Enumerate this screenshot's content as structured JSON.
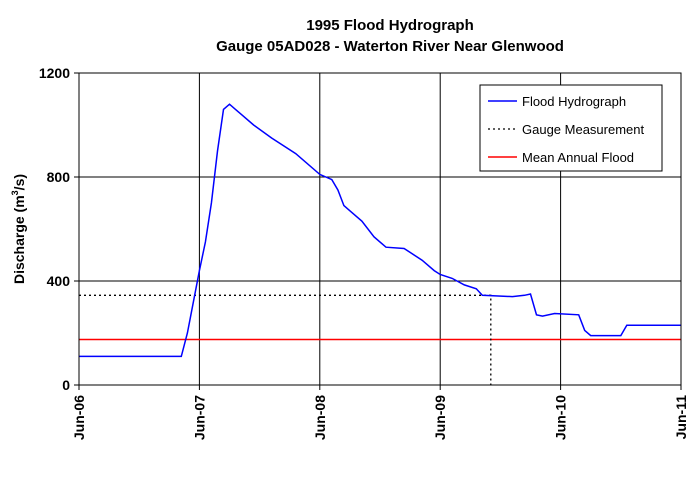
{
  "chart_data": {
    "type": "line",
    "title": "1995 Flood Hydrograph",
    "subtitle": "Gauge 05AD028 - Waterton River Near Glenwood",
    "ylabel": "Discharge (m",
    "ylabel_sup": "3",
    "ylabel_tail": "/s)",
    "xlabel": "",
    "ylim": [
      0,
      1200
    ],
    "yticks": [
      0,
      400,
      800,
      1200
    ],
    "xlim": [
      6,
      11
    ],
    "xticks": [
      6,
      7,
      8,
      9,
      10,
      11
    ],
    "xtick_labels": [
      "Jun-06",
      "Jun-07",
      "Jun-08",
      "Jun-09",
      "Jun-10",
      "Jun-11"
    ],
    "grid": true,
    "legend_position": "top-right",
    "series": [
      {
        "name": "Flood Hydrograph",
        "style": "solid",
        "color": "#0000ff",
        "x": [
          6.0,
          6.85,
          6.9,
          6.95,
          7.0,
          7.05,
          7.1,
          7.15,
          7.2,
          7.25,
          7.3,
          7.35,
          7.45,
          7.6,
          7.8,
          8.0,
          8.1,
          8.15,
          8.2,
          8.25,
          8.35,
          8.45,
          8.55,
          8.7,
          8.75,
          8.85,
          8.95,
          9.0,
          9.1,
          9.2,
          9.3,
          9.35,
          9.6,
          9.7,
          9.75,
          9.8,
          9.85,
          9.95,
          10.15,
          10.2,
          10.25,
          10.5,
          10.55,
          11.0
        ],
        "y": [
          110,
          110,
          200,
          320,
          440,
          550,
          700,
          900,
          1060,
          1080,
          1060,
          1040,
          1000,
          950,
          890,
          810,
          790,
          750,
          690,
          670,
          630,
          570,
          530,
          525,
          510,
          480,
          440,
          425,
          410,
          385,
          370,
          345,
          340,
          345,
          350,
          270,
          265,
          275,
          270,
          210,
          190,
          190,
          230,
          230
        ]
      },
      {
        "name": "Gauge Measurement",
        "style": "dotted",
        "color": "#000000",
        "x": [
          6.0,
          9.42,
          9.42
        ],
        "y": [
          345,
          345,
          0
        ]
      },
      {
        "name": "Mean Annual Flood",
        "style": "solid",
        "color": "#ff0000",
        "x": [
          6.0,
          11.0
        ],
        "y": [
          175,
          175
        ]
      }
    ]
  }
}
